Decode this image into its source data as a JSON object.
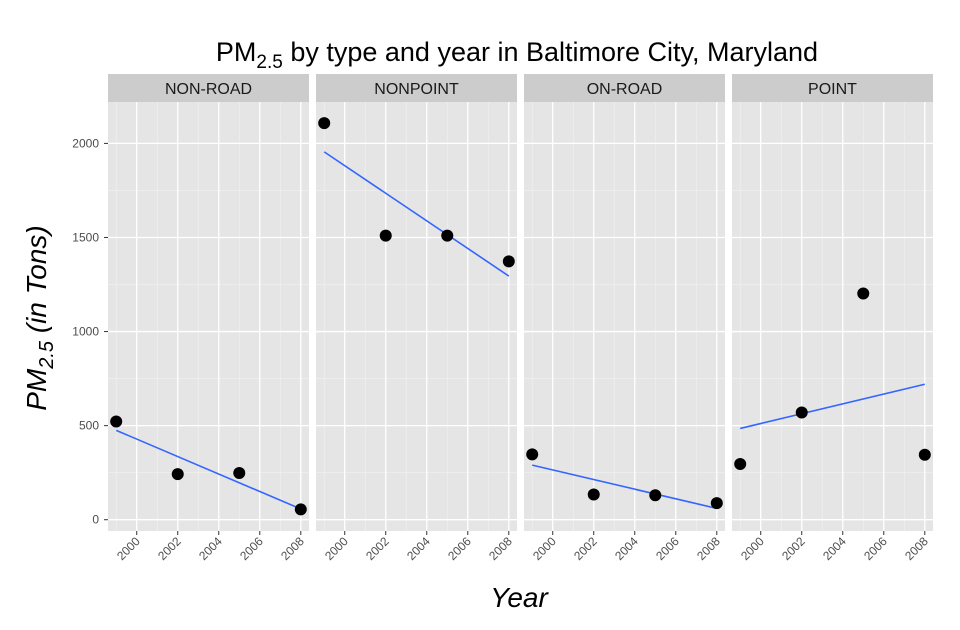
{
  "chart_data": {
    "type": "scatter",
    "title": "PM",
    "title_subscript": "2.5",
    "title_rest": " by type and year in Baltimore City, Maryland",
    "xlabel": "Year",
    "ylabel": "PM",
    "ylabel_subscript": "2.5",
    "ylabel_rest": " (in Tons)",
    "xlim": [
      1998.6,
      2008.4
    ],
    "ylim": [
      -60,
      2220
    ],
    "x_ticks": [
      2000,
      2002,
      2004,
      2006,
      2008
    ],
    "y_ticks": [
      0,
      500,
      1000,
      1500,
      2000
    ],
    "y_minor_ticks": [
      250,
      750,
      1250,
      1750
    ],
    "x_minor_ticks": [
      1999,
      2001,
      2003,
      2005,
      2007
    ],
    "grid": true,
    "background_color": "#e5e5e5",
    "strip_color": "#cccccc",
    "point_color": "#000000",
    "line_color": "#3366ff",
    "panels": [
      {
        "name": "NON-ROAD",
        "x": [
          1999,
          2002,
          2005,
          2008
        ],
        "y": [
          522,
          242,
          248,
          55
        ],
        "fit": [
          [
            1999,
            475
          ],
          [
            2008,
            57
          ]
        ]
      },
      {
        "name": "NONPOINT",
        "x": [
          1999,
          2002,
          2005,
          2008
        ],
        "y": [
          2108,
          1510,
          1510,
          1373
        ],
        "fit": [
          [
            1999,
            1955
          ],
          [
            2008,
            1295
          ]
        ]
      },
      {
        "name": "ON-ROAD",
        "x": [
          1999,
          2002,
          2005,
          2008
        ],
        "y": [
          347,
          134,
          130,
          88
        ],
        "fit": [
          [
            1999,
            290
          ],
          [
            2008,
            60
          ]
        ]
      },
      {
        "name": "POINT",
        "x": [
          1999,
          2002,
          2005,
          2008
        ],
        "y": [
          296,
          570,
          1202,
          345
        ],
        "fit": [
          [
            1999,
            485
          ],
          [
            2008,
            720
          ]
        ]
      }
    ]
  }
}
